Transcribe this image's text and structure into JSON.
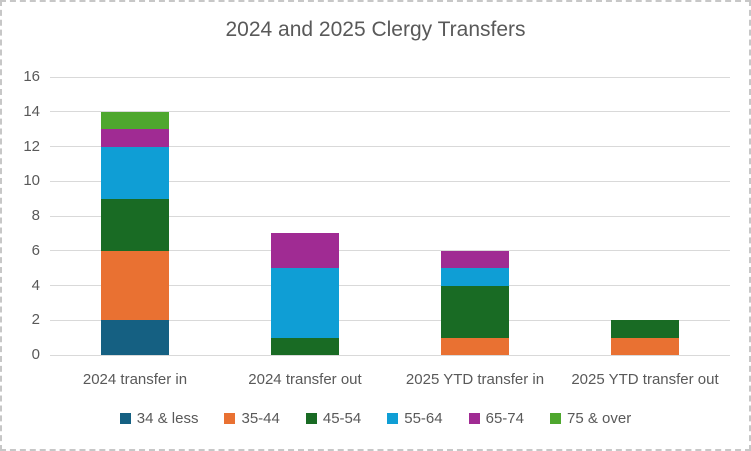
{
  "title": "2024 and 2025 Clergy Transfers",
  "chart_data": {
    "type": "bar",
    "stacked": true,
    "title": "2024 and 2025 Clergy Transfers",
    "xlabel": "",
    "ylabel": "",
    "categories": [
      "2024 transfer in",
      "2024 transfer out",
      "2025 YTD transfer in",
      "2025 YTD transfer out"
    ],
    "series": [
      {
        "name": "34 & less",
        "color": "#156082",
        "values": [
          2,
          0,
          0,
          0
        ]
      },
      {
        "name": "35-44",
        "color": "#E97132",
        "values": [
          4,
          0,
          1,
          1
        ]
      },
      {
        "name": "45-54",
        "color": "#196B24",
        "values": [
          3,
          1,
          3,
          1
        ]
      },
      {
        "name": "55-64",
        "color": "#0F9ED5",
        "values": [
          3,
          4,
          1,
          0
        ]
      },
      {
        "name": "65-74",
        "color": "#A02B93",
        "values": [
          1,
          2,
          1,
          0
        ]
      },
      {
        "name": "75 & over",
        "color": "#4EA72E",
        "values": [
          1,
          0,
          0,
          0
        ]
      }
    ],
    "totals": [
      14,
      7,
      6,
      2
    ],
    "ylim": [
      0,
      16
    ],
    "yticks": [
      0,
      2,
      4,
      6,
      8,
      10,
      12,
      14,
      16
    ],
    "grid": true,
    "legend_position": "bottom"
  },
  "colors": {
    "text": "#595959",
    "gridline": "#D9D9D9",
    "chart_border": "#C7C7C7",
    "background": "#FFFFFF"
  }
}
